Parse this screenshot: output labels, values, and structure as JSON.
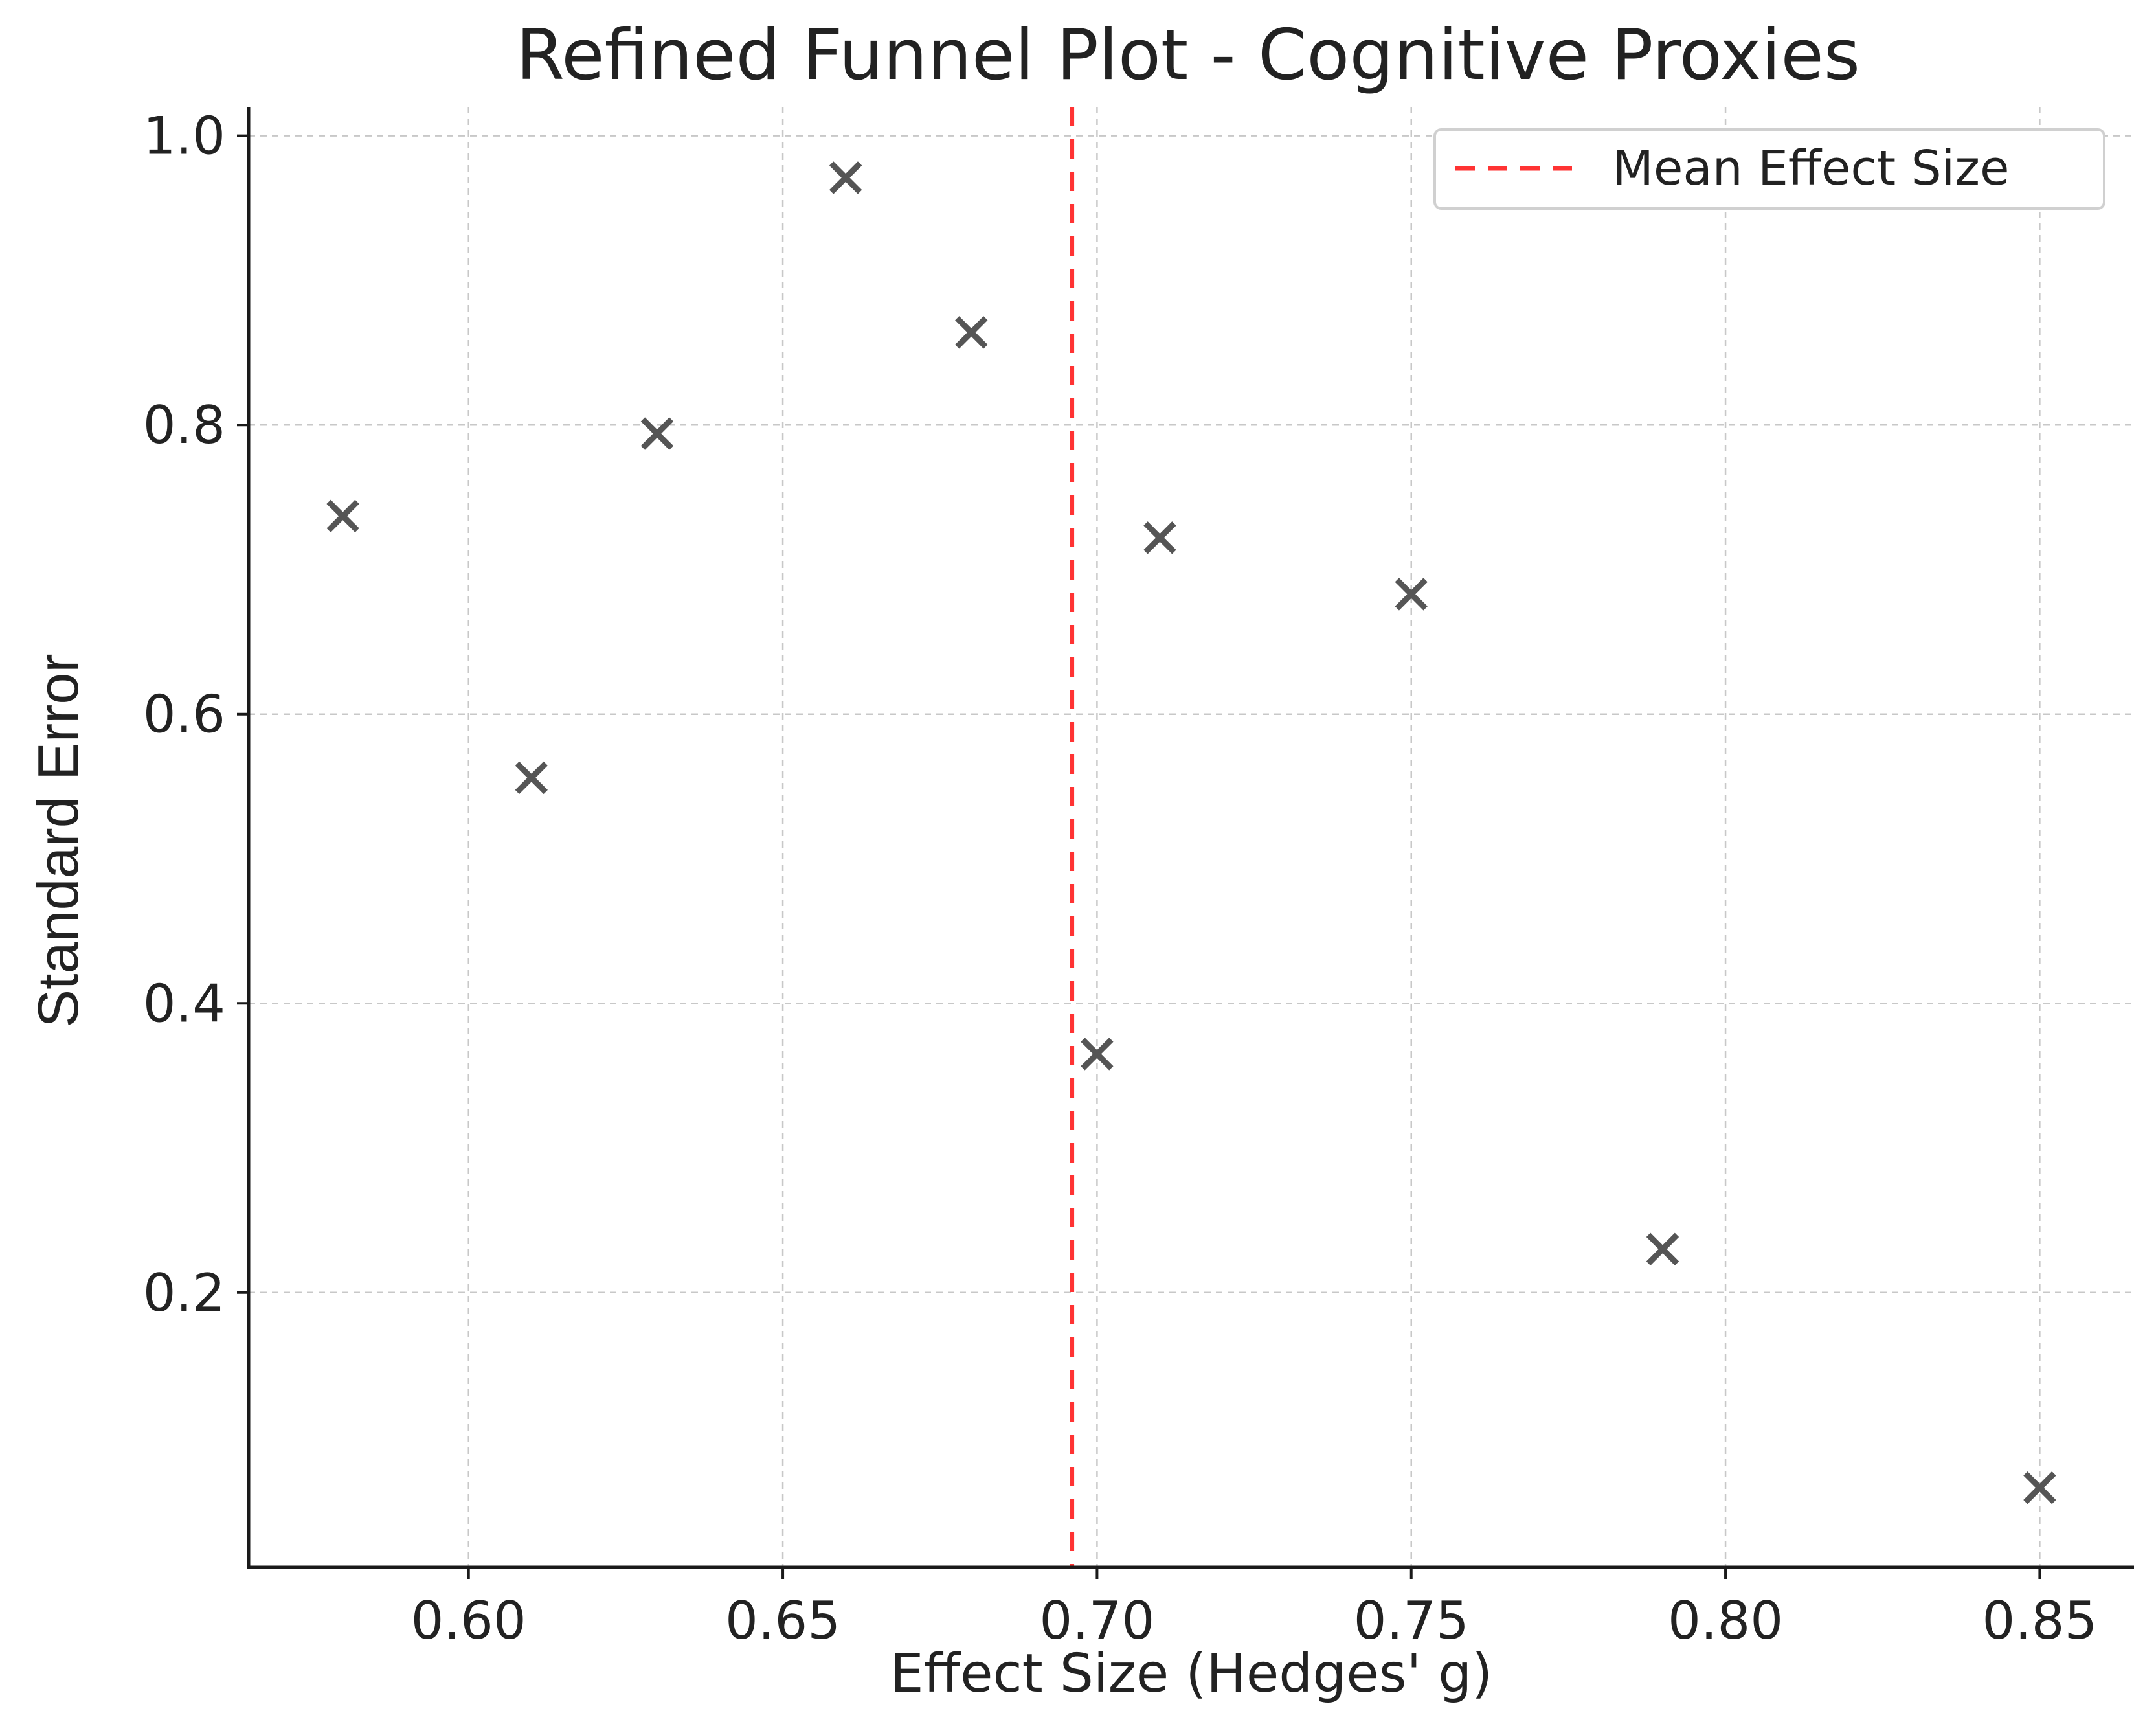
{
  "chart_data": {
    "type": "scatter",
    "title": "Refined Funnel Plot - Cognitive Proxies",
    "xlabel": "Effect Size (Hedges' g)",
    "ylabel": "Standard Error",
    "xlim": [
      0.565,
      0.865
    ],
    "ylim": [
      0.01,
      1.02
    ],
    "xticks": [
      0.6,
      0.65,
      0.7,
      0.75,
      0.8,
      0.85
    ],
    "xtick_labels": [
      "0.60",
      "0.65",
      "0.70",
      "0.75",
      "0.80",
      "0.85"
    ],
    "yticks": [
      0.2,
      0.4,
      0.6,
      0.8,
      1.0
    ],
    "ytick_labels": [
      "0.2",
      "0.4",
      "0.6",
      "0.8",
      "1.0"
    ],
    "grid": true,
    "marker": "x",
    "marker_color": "#555555",
    "points": [
      {
        "x": 0.58,
        "y": 0.737
      },
      {
        "x": 0.61,
        "y": 0.556
      },
      {
        "x": 0.63,
        "y": 0.794
      },
      {
        "x": 0.66,
        "y": 0.971
      },
      {
        "x": 0.68,
        "y": 0.864
      },
      {
        "x": 0.7,
        "y": 0.365
      },
      {
        "x": 0.71,
        "y": 0.722
      },
      {
        "x": 0.75,
        "y": 0.683
      },
      {
        "x": 0.79,
        "y": 0.23
      },
      {
        "x": 0.85,
        "y": 0.065
      }
    ],
    "reference_line": {
      "orientation": "vertical",
      "x": 0.696,
      "color": "#ff3333",
      "style": "dashed",
      "label": "Mean Effect Size"
    },
    "legend": {
      "placement": "top-right",
      "entries": [
        "Mean Effect Size"
      ]
    }
  }
}
